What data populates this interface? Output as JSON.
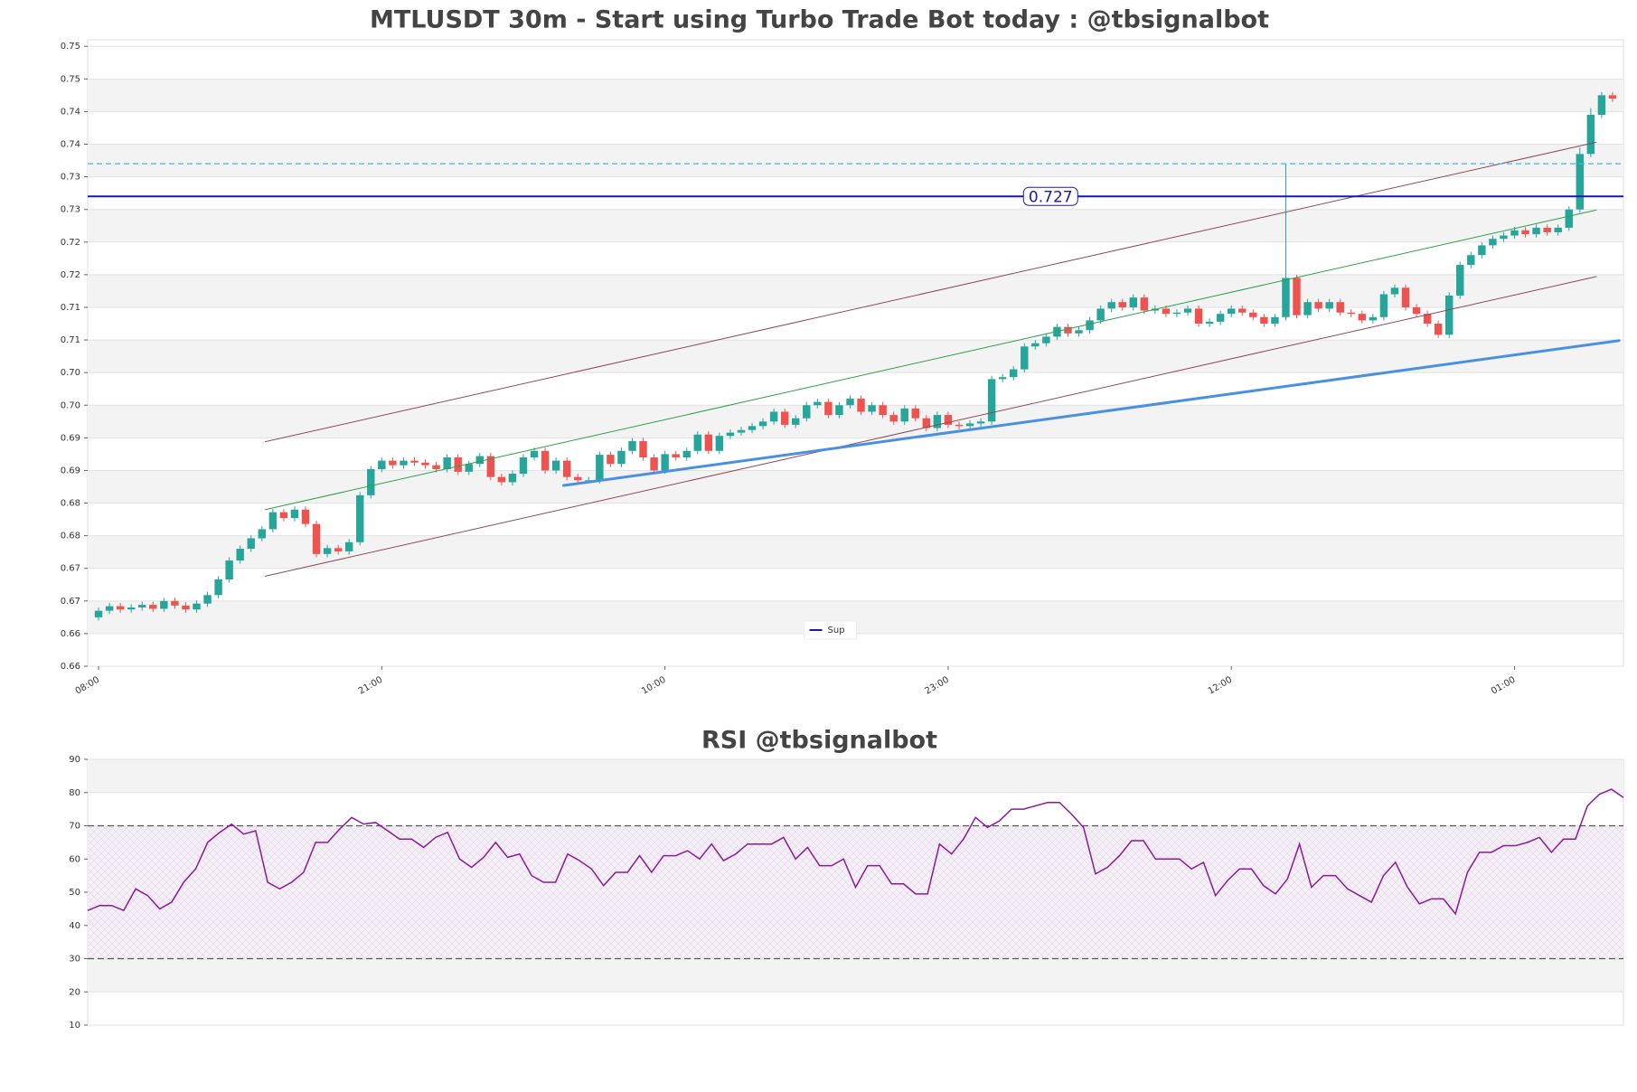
{
  "chart_data": [
    {
      "type": "candlestick",
      "title": "MTLUSDT 30m - Start using Turbo Trade Bot today : @tbsignalbot",
      "categories": [
        "08:00",
        null,
        null,
        null,
        null,
        null,
        null,
        null,
        null,
        null,
        null,
        null,
        null,
        null,
        null,
        null,
        null,
        null,
        null,
        null,
        null,
        null,
        null,
        null,
        null,
        null,
        "21:00",
        null,
        null,
        null,
        null,
        null,
        null,
        null,
        null,
        null,
        null,
        null,
        null,
        null,
        null,
        null,
        null,
        null,
        null,
        null,
        null,
        null,
        null,
        null,
        null,
        null,
        "10:00",
        null,
        null,
        null,
        null,
        null,
        null,
        null,
        null,
        null,
        null,
        null,
        null,
        null,
        null,
        null,
        null,
        null,
        null,
        null,
        null,
        null,
        null,
        null,
        null,
        null,
        "23:00",
        null,
        null,
        null,
        null,
        null,
        null,
        null,
        null,
        null,
        null,
        null,
        null,
        null,
        null,
        null,
        null,
        null,
        null,
        null,
        null,
        null,
        null,
        null,
        null,
        null,
        "12:00",
        null,
        null,
        null,
        null,
        null,
        null,
        null,
        null,
        null,
        null,
        null,
        null,
        null,
        null,
        null,
        null,
        null,
        null,
        null,
        null,
        null,
        null,
        null,
        null,
        null,
        "01:00",
        null,
        null,
        null,
        null,
        null,
        null,
        null,
        null,
        null
      ],
      "open": [
        0.6625,
        0.6635,
        0.6642,
        0.6637,
        0.664,
        0.6644,
        0.6638,
        0.665,
        0.6643,
        0.6637,
        0.6646,
        0.6659,
        0.6683,
        0.6712,
        0.673,
        0.6746,
        0.676,
        0.6786,
        0.6777,
        0.679,
        0.6768,
        0.6722,
        0.6731,
        0.6726,
        0.674,
        0.6812,
        0.6852,
        0.6865,
        0.6858,
        0.6865,
        0.6862,
        0.6858,
        0.6852,
        0.687,
        0.6848,
        0.686,
        0.6872,
        0.684,
        0.6832,
        0.6845,
        0.687,
        0.688,
        0.685,
        0.6865,
        0.684,
        0.6835,
        0.6835,
        0.6874,
        0.686,
        0.688,
        0.6895,
        0.687,
        0.685,
        0.6875,
        0.687,
        0.688,
        0.6905,
        0.688,
        0.6903,
        0.6908,
        0.6912,
        0.6918,
        0.6925,
        0.694,
        0.692,
        0.693,
        0.695,
        0.6955,
        0.6935,
        0.695,
        0.696,
        0.694,
        0.695,
        0.6935,
        0.6925,
        0.6945,
        0.693,
        0.6915,
        0.6935,
        0.692,
        0.6918,
        0.6922,
        0.6925,
        0.699,
        0.6993,
        0.7005,
        0.704,
        0.7045,
        0.7055,
        0.707,
        0.706,
        0.7065,
        0.708,
        0.7098,
        0.7108,
        0.71,
        0.7115,
        0.7095,
        0.7098,
        0.709,
        0.7092,
        0.7098,
        0.7075,
        0.7078,
        0.709,
        0.7098,
        0.7092,
        0.7085,
        0.7075,
        0.7085,
        0.7145,
        0.7088,
        0.7108,
        0.7098,
        0.7108,
        0.7092,
        0.709,
        0.708,
        0.7085,
        0.712,
        0.713,
        0.71,
        0.709,
        0.7075,
        0.7058,
        0.7118,
        0.7165,
        0.718,
        0.7195,
        0.7205,
        0.721,
        0.7218,
        0.7212,
        0.7222,
        0.7215,
        0.7222,
        0.725,
        0.7335,
        0.7395,
        0.7425
      ],
      "high": [
        0.664,
        0.6647,
        0.6647,
        0.6645,
        0.6649,
        0.6649,
        0.6655,
        0.6655,
        0.6648,
        0.6651,
        0.6664,
        0.6688,
        0.6717,
        0.6735,
        0.6751,
        0.6765,
        0.6791,
        0.6791,
        0.6795,
        0.6795,
        0.6773,
        0.6736,
        0.6736,
        0.6745,
        0.6817,
        0.6857,
        0.687,
        0.687,
        0.687,
        0.687,
        0.6867,
        0.6863,
        0.6875,
        0.6875,
        0.6865,
        0.6877,
        0.6877,
        0.6845,
        0.685,
        0.6875,
        0.6885,
        0.6885,
        0.687,
        0.687,
        0.6845,
        0.684,
        0.6879,
        0.6879,
        0.6885,
        0.69,
        0.69,
        0.6875,
        0.688,
        0.688,
        0.6885,
        0.691,
        0.691,
        0.6908,
        0.6913,
        0.6917,
        0.6923,
        0.693,
        0.6945,
        0.6945,
        0.6935,
        0.6955,
        0.696,
        0.696,
        0.6955,
        0.6965,
        0.6965,
        0.6955,
        0.6955,
        0.694,
        0.695,
        0.695,
        0.6935,
        0.694,
        0.694,
        0.6925,
        0.6927,
        0.693,
        0.6995,
        0.6998,
        0.701,
        0.7045,
        0.705,
        0.706,
        0.7075,
        0.7075,
        0.707,
        0.7085,
        0.7103,
        0.7113,
        0.7113,
        0.712,
        0.712,
        0.7103,
        0.7103,
        0.7097,
        0.7103,
        0.7103,
        0.7083,
        0.7095,
        0.7103,
        0.7103,
        0.7097,
        0.709,
        0.709,
        0.732,
        0.715,
        0.7113,
        0.7113,
        0.7113,
        0.7113,
        0.7097,
        0.7095,
        0.709,
        0.7125,
        0.7135,
        0.7135,
        0.7105,
        0.7095,
        0.708,
        0.7123,
        0.717,
        0.7185,
        0.72,
        0.721,
        0.7215,
        0.7223,
        0.7223,
        0.7227,
        0.7227,
        0.7227,
        0.7255,
        0.7345,
        0.7405,
        0.743,
        0.743
      ],
      "low": [
        0.662,
        0.663,
        0.6632,
        0.6632,
        0.6635,
        0.6633,
        0.6633,
        0.6638,
        0.6632,
        0.6632,
        0.6641,
        0.6654,
        0.6678,
        0.6707,
        0.6725,
        0.6741,
        0.6755,
        0.6772,
        0.6772,
        0.6763,
        0.6717,
        0.6717,
        0.6721,
        0.6721,
        0.6735,
        0.6807,
        0.6847,
        0.6853,
        0.6853,
        0.6857,
        0.6853,
        0.6847,
        0.6847,
        0.6843,
        0.6843,
        0.6855,
        0.6835,
        0.6827,
        0.6827,
        0.684,
        0.6865,
        0.6845,
        0.6845,
        0.6835,
        0.683,
        0.683,
        0.683,
        0.6855,
        0.6855,
        0.6875,
        0.6865,
        0.6845,
        0.6845,
        0.6865,
        0.6865,
        0.6875,
        0.6875,
        0.6875,
        0.6898,
        0.6903,
        0.6907,
        0.6913,
        0.692,
        0.6915,
        0.6915,
        0.6925,
        0.6945,
        0.693,
        0.693,
        0.6945,
        0.6935,
        0.6935,
        0.693,
        0.692,
        0.692,
        0.6925,
        0.691,
        0.691,
        0.6915,
        0.6913,
        0.6913,
        0.6917,
        0.692,
        0.6985,
        0.6988,
        0.7,
        0.7035,
        0.704,
        0.705,
        0.7055,
        0.7055,
        0.706,
        0.7075,
        0.7093,
        0.7095,
        0.7095,
        0.709,
        0.709,
        0.7085,
        0.7085,
        0.7087,
        0.707,
        0.707,
        0.7073,
        0.7085,
        0.7087,
        0.708,
        0.707,
        0.707,
        0.708,
        0.7083,
        0.7083,
        0.7093,
        0.7093,
        0.7087,
        0.7085,
        0.7075,
        0.7075,
        0.708,
        0.7115,
        0.7095,
        0.7085,
        0.707,
        0.7053,
        0.7053,
        0.7113,
        0.716,
        0.7175,
        0.719,
        0.72,
        0.7205,
        0.7207,
        0.7207,
        0.721,
        0.721,
        0.7217,
        0.7245,
        0.733,
        0.739,
        0.7415
      ],
      "close": [
        0.6635,
        0.6642,
        0.6637,
        0.664,
        0.6644,
        0.6638,
        0.665,
        0.6643,
        0.6637,
        0.6646,
        0.6659,
        0.6683,
        0.6712,
        0.673,
        0.6746,
        0.676,
        0.6786,
        0.6777,
        0.679,
        0.6768,
        0.6722,
        0.6731,
        0.6726,
        0.674,
        0.6812,
        0.6852,
        0.6865,
        0.6858,
        0.6865,
        0.6862,
        0.6858,
        0.6852,
        0.687,
        0.6848,
        0.686,
        0.6872,
        0.684,
        0.6832,
        0.6845,
        0.687,
        0.688,
        0.685,
        0.6865,
        0.684,
        0.6835,
        0.6835,
        0.6874,
        0.686,
        0.688,
        0.6895,
        0.687,
        0.685,
        0.6875,
        0.687,
        0.688,
        0.6905,
        0.688,
        0.6903,
        0.6908,
        0.6912,
        0.6918,
        0.6925,
        0.694,
        0.692,
        0.693,
        0.695,
        0.6955,
        0.6935,
        0.695,
        0.696,
        0.694,
        0.695,
        0.6935,
        0.6925,
        0.6945,
        0.693,
        0.6915,
        0.6935,
        0.692,
        0.6918,
        0.6922,
        0.6925,
        0.699,
        0.6993,
        0.7005,
        0.704,
        0.7045,
        0.7055,
        0.707,
        0.706,
        0.7065,
        0.708,
        0.7098,
        0.7108,
        0.71,
        0.7115,
        0.7095,
        0.7098,
        0.709,
        0.7092,
        0.7098,
        0.7075,
        0.7078,
        0.709,
        0.7098,
        0.7092,
        0.7085,
        0.7075,
        0.7085,
        0.7145,
        0.7088,
        0.7108,
        0.7098,
        0.7108,
        0.7092,
        0.709,
        0.708,
        0.7085,
        0.712,
        0.713,
        0.71,
        0.709,
        0.7075,
        0.7058,
        0.7118,
        0.7165,
        0.718,
        0.7195,
        0.7205,
        0.721,
        0.7218,
        0.7212,
        0.7222,
        0.7215,
        0.7222,
        0.725,
        0.7335,
        0.7395,
        0.7425,
        0.742
      ],
      "up_color": "#26a69a",
      "down_color": "#ef5350",
      "ylim": [
        0.655,
        0.751
      ],
      "yticks": [
        {
          "value": 0.655,
          "label": "0.66"
        },
        {
          "value": 0.66,
          "label": "0.66"
        },
        {
          "value": 0.665,
          "label": "0.67"
        },
        {
          "value": 0.67,
          "label": "0.67"
        },
        {
          "value": 0.675,
          "label": "0.68"
        },
        {
          "value": 0.68,
          "label": "0.68"
        },
        {
          "value": 0.685,
          "label": "0.69"
        },
        {
          "value": 0.69,
          "label": "0.69"
        },
        {
          "value": 0.695,
          "label": "0.70"
        },
        {
          "value": 0.7,
          "label": "0.70"
        },
        {
          "value": 0.705,
          "label": "0.71"
        },
        {
          "value": 0.71,
          "label": "0.71"
        },
        {
          "value": 0.715,
          "label": "0.72"
        },
        {
          "value": 0.72,
          "label": "0.72"
        },
        {
          "value": 0.725,
          "label": "0.73"
        },
        {
          "value": 0.73,
          "label": "0.73"
        },
        {
          "value": 0.735,
          "label": "0.74"
        },
        {
          "value": 0.74,
          "label": "0.74"
        },
        {
          "value": 0.745,
          "label": "0.75"
        },
        {
          "value": 0.75,
          "label": "0.75"
        }
      ],
      "trendlines": [
        {
          "color": "#8b4a5a",
          "width": 1,
          "x": [
            15.3,
            137.5
          ],
          "y": [
            0.6894,
            0.7353
          ]
        },
        {
          "color": "#2e9e4f",
          "width": 1,
          "x": [
            15.3,
            137.5
          ],
          "y": [
            0.679,
            0.7249
          ]
        },
        {
          "color": "#8b4a5a",
          "width": 1,
          "x": [
            15.3,
            137.5
          ],
          "y": [
            0.6688,
            0.7147
          ]
        },
        {
          "color": "#4a90e2",
          "width": 3,
          "x": [
            42.7,
            139.6
          ],
          "y": [
            0.6827,
            0.7049
          ]
        }
      ],
      "levels": [
        {
          "value": 0.732,
          "color": "#4fb3d9",
          "dashed": true
        },
        {
          "name": "Sup",
          "value": 0.727,
          "color": "#1a1aa0",
          "dashed": false
        }
      ],
      "legend": "lower center",
      "grid": true
    },
    {
      "type": "line",
      "title": "RSI @tbsignalbot",
      "color": "#8b1a9b",
      "values": [
        44.5,
        46,
        46,
        44.5,
        51,
        49,
        45,
        47,
        53,
        57,
        65,
        68,
        70.5,
        67.5,
        68.5,
        53,
        51,
        53,
        56,
        65,
        65,
        69,
        72.5,
        70.5,
        71,
        68.5,
        66,
        66,
        63.5,
        66.5,
        68,
        60,
        57.5,
        60.5,
        65,
        60.5,
        61.5,
        55,
        53,
        53,
        61.5,
        59.5,
        57,
        52,
        56,
        56,
        61,
        56,
        61,
        61,
        62.5,
        60,
        64.5,
        59.5,
        61.5,
        64.5,
        64.5,
        64.5,
        66.5,
        60,
        63.5,
        58,
        58,
        60,
        51.5,
        58,
        58,
        52.5,
        52.5,
        49.5,
        49.5,
        64.5,
        61.5,
        66,
        72.5,
        69.5,
        71.5,
        75,
        75,
        76,
        77,
        77,
        73.5,
        69.5,
        55.5,
        57.5,
        61,
        65.5,
        65.5,
        60,
        60,
        60,
        57,
        59,
        49,
        53.5,
        57,
        57,
        52,
        49.5,
        54,
        64.5,
        51.5,
        55,
        55,
        51,
        49,
        47,
        55,
        59,
        51.5,
        46.5,
        48,
        48,
        43.5,
        56,
        62,
        62,
        64,
        64,
        65,
        66.5,
        62,
        66,
        66,
        76,
        79.5,
        81,
        78.5
      ],
      "ylim": [
        10,
        90
      ],
      "yticks": [
        10,
        20,
        30,
        40,
        50,
        60,
        70,
        80,
        90
      ],
      "hlines": [
        30,
        70
      ],
      "grid": true
    }
  ]
}
